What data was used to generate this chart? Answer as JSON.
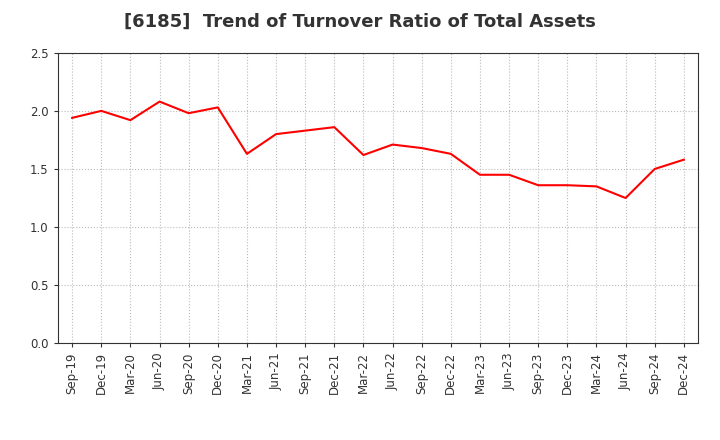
{
  "title": "[6185]  Trend of Turnover Ratio of Total Assets",
  "labels": [
    "Sep-19",
    "Dec-19",
    "Mar-20",
    "Jun-20",
    "Sep-20",
    "Dec-20",
    "Mar-21",
    "Jun-21",
    "Sep-21",
    "Dec-21",
    "Mar-22",
    "Jun-22",
    "Sep-22",
    "Dec-22",
    "Mar-23",
    "Jun-23",
    "Sep-23",
    "Dec-23",
    "Mar-24",
    "Jun-24",
    "Sep-24",
    "Dec-24"
  ],
  "values": [
    1.94,
    2.0,
    1.92,
    2.08,
    1.98,
    2.03,
    1.63,
    1.8,
    1.83,
    1.86,
    1.62,
    1.71,
    1.68,
    1.63,
    1.45,
    1.45,
    1.36,
    1.36,
    1.35,
    1.25,
    1.5,
    1.58
  ],
  "line_color": "#ff0000",
  "line_width": 1.5,
  "ylim": [
    0.0,
    2.5
  ],
  "yticks": [
    0.0,
    0.5,
    1.0,
    1.5,
    2.0,
    2.5
  ],
  "grid_color": "#bbbbbb",
  "bg_color": "#ffffff",
  "title_fontsize": 13,
  "tick_fontsize": 8.5,
  "title_color": "#333333"
}
